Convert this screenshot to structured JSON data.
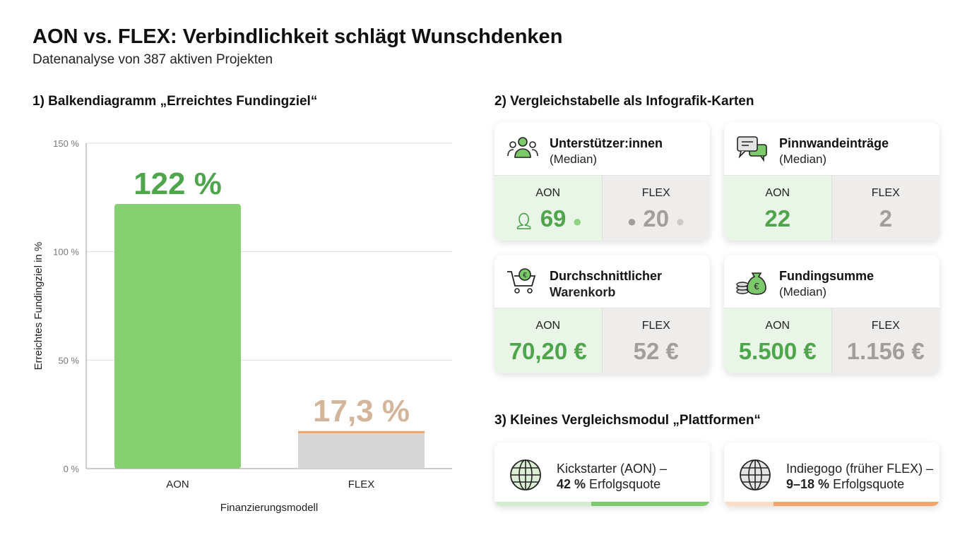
{
  "title": "AON vs. FLEX: Verbindlichkeit schlägt Wunschdenken",
  "subtitle": "Datenanalyse von 387 aktiven Projekten",
  "section1": "1) Balkendiagramm „Erreichtes Fundingziel“",
  "section2": "2) Vergleichstabelle als Infografik-Karten",
  "section3": "3) Kleines Vergleichsmodul „Plattformen“",
  "colors": {
    "aon": "#86d072",
    "aon_text": "#4ea54c",
    "flex": "#d6d6d6",
    "flex_top": "#f0a56e",
    "flex_text": "#d3b59c"
  },
  "chart_data": {
    "type": "bar",
    "categories": [
      "AON",
      "FLEX"
    ],
    "values": [
      122,
      17.3
    ],
    "data_labels": [
      "122 %",
      "17,3 %"
    ],
    "xlabel": "Finanzierungsmodell",
    "ylabel": "Erreichtes Fundingziel in %",
    "ylim": [
      0,
      150
    ],
    "yticks": [
      0,
      50,
      100,
      150
    ],
    "ytick_labels": [
      "0 %",
      "50 %",
      "100 %",
      "150 %"
    ],
    "grid": true
  },
  "cards": [
    {
      "title": "Unterstützer:innen",
      "subtitle": "(Median)",
      "icon": "people-icon",
      "aon_label": "AON",
      "aon_value": "69",
      "flex_label": "FLEX",
      "flex_value": "20"
    },
    {
      "title": "Pinnwandeinträge",
      "subtitle": "(Median)",
      "icon": "chat-icon",
      "aon_label": "AON",
      "aon_value": "22",
      "flex_label": "FLEX",
      "flex_value": "2"
    },
    {
      "title": "Durchschnittlicher",
      "subtitle": "Warenkorb",
      "icon": "cart-euro-icon",
      "aon_label": "AON",
      "aon_value": "70,20 €",
      "flex_label": "FLEX",
      "flex_value": "52 €"
    },
    {
      "title": "Fundingsumme",
      "subtitle": "(Median)",
      "icon": "money-bag-icon",
      "aon_label": "AON",
      "aon_value": "5.500 €",
      "flex_label": "FLEX",
      "flex_value": "1.156 €"
    }
  ],
  "platforms": [
    {
      "name": "Kickstarter (AON) –",
      "rate": "42 %",
      "rate_suffix": " Erfolgsquote",
      "icon": "globe-icon"
    },
    {
      "name": "Indiegogo (früher FLEX) –",
      "rate": "9–18 %",
      "rate_suffix": " Erfolgsquote",
      "icon": "globe-icon"
    }
  ]
}
